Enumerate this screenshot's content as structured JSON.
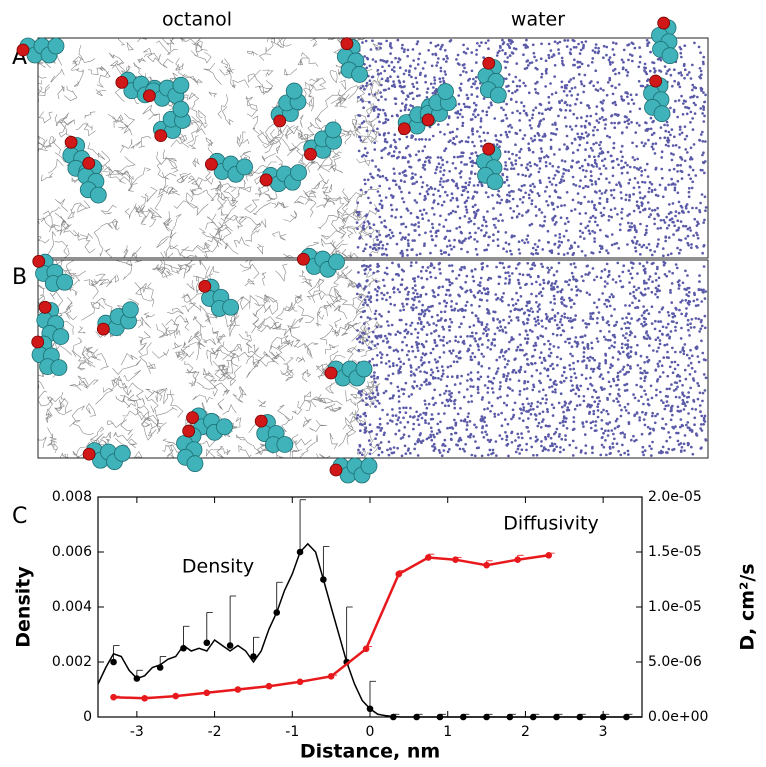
{
  "figure": {
    "panel_labels": [
      "A",
      "B",
      "C"
    ],
    "columns": [
      "octanol",
      "water"
    ]
  },
  "chart_data": {
    "type": "line",
    "x_label": "Distance, nm",
    "y_label": "Density",
    "y2_label": "D, cm²/s",
    "xlim": [
      -3.5,
      3.5
    ],
    "xticks": [
      -3,
      -2,
      -1,
      0,
      1,
      2,
      3
    ],
    "ylim": [
      0,
      0.008
    ],
    "yticks": [
      0,
      0.002,
      0.004,
      0.006,
      0.008
    ],
    "y2lim": [
      0,
      2e-05
    ],
    "y2ticks": [
      {
        "value": 0,
        "label": "0.0e+00"
      },
      {
        "value": 5e-06,
        "label": "5.0e-06"
      },
      {
        "value": 1e-05,
        "label": "1.0e-05"
      },
      {
        "value": 1.5e-05,
        "label": "1.5e-05"
      },
      {
        "value": 2e-05,
        "label": "2.0e-05"
      }
    ],
    "series": [
      {
        "name": "Density",
        "color": "#000000",
        "x": [
          -3.5,
          -3.4,
          -3.3,
          -3.2,
          -3.1,
          -3.0,
          -2.9,
          -2.8,
          -2.7,
          -2.6,
          -2.5,
          -2.4,
          -2.3,
          -2.2,
          -2.1,
          -2.0,
          -1.9,
          -1.8,
          -1.7,
          -1.6,
          -1.5,
          -1.4,
          -1.3,
          -1.2,
          -1.1,
          -1.0,
          -0.9,
          -0.8,
          -0.7,
          -0.6,
          -0.5,
          -0.4,
          -0.3,
          -0.2,
          -0.1,
          0,
          0.1,
          0.2,
          0.3,
          0.4,
          0.5,
          0.6,
          0.7,
          0.8,
          0.9,
          1.0,
          1.1,
          1.2,
          1.3,
          1.4,
          1.5,
          1.6,
          1.7,
          1.8,
          1.9,
          2.0,
          2.1,
          2.2,
          2.3,
          2.4,
          2.5,
          2.6,
          2.7,
          2.8,
          2.9,
          3.0,
          3.1,
          3.2,
          3.3,
          3.4,
          3.5
        ],
        "values": [
          0.0012,
          0.0018,
          0.0023,
          0.0022,
          0.0017,
          0.0014,
          0.0015,
          0.0018,
          0.0019,
          0.0021,
          0.0022,
          0.0026,
          0.0024,
          0.0025,
          0.0024,
          0.0028,
          0.0026,
          0.0024,
          0.0026,
          0.0024,
          0.002,
          0.0024,
          0.0032,
          0.0038,
          0.0046,
          0.0052,
          0.006,
          0.0063,
          0.006,
          0.005,
          0.004,
          0.003,
          0.002,
          0.0012,
          0.0006,
          0.0003,
          0.0001,
          5e-05,
          2e-05,
          0,
          0,
          0,
          0,
          0,
          0,
          0,
          0,
          0,
          0,
          0,
          0,
          0,
          0,
          0,
          0,
          0,
          0,
          0,
          0,
          0,
          0,
          0,
          0,
          0,
          0,
          0,
          0,
          0,
          0,
          0,
          0
        ]
      },
      {
        "color": "#000000",
        "markers": true,
        "x": [
          -3.3,
          -3.0,
          -2.7,
          -2.4,
          -2.1,
          -1.8,
          -1.5,
          -1.2,
          -0.9,
          -0.6,
          -0.3,
          0,
          0.3,
          0.6,
          0.9,
          1.2,
          1.5,
          1.8,
          2.1,
          2.4,
          2.7,
          3.0,
          3.3
        ],
        "values": [
          0.002,
          0.0014,
          0.0018,
          0.0025,
          0.0027,
          0.0026,
          0.0022,
          0.0038,
          0.006,
          0.005,
          0.002,
          0.0003,
          0,
          0,
          0,
          0,
          0,
          0,
          0,
          0,
          0,
          0,
          0
        ],
        "errors": [
          0.0006,
          0.0003,
          0.0004,
          0.0008,
          0.0011,
          0.0018,
          0.0007,
          0.0011,
          0.0019,
          0.0012,
          0.002,
          0.001,
          0.0001,
          0.0001,
          0.0001,
          0.0001,
          0.0001,
          0.0001,
          0.0001,
          0.0001,
          0.0001,
          0.0001,
          0.0001
        ]
      },
      {
        "name": "Diffusivity",
        "color": "#e8191c",
        "axis": "y2",
        "markers": true,
        "x": [
          -3.3,
          -2.9,
          -2.5,
          -2.1,
          -1.7,
          -1.3,
          -0.9,
          -0.5,
          -0.05,
          0.37,
          0.75,
          1.1,
          1.5,
          1.9,
          2.3
        ],
        "values": [
          1.8e-06,
          1.7e-06,
          1.9e-06,
          2.2e-06,
          2.5e-06,
          2.8e-06,
          3.2e-06,
          3.7e-06,
          6.2e-06,
          1.3e-05,
          1.45e-05,
          1.43e-05,
          1.38e-05,
          1.43e-05,
          1.47e-05
        ],
        "errors": [
          1e-07,
          1e-07,
          1e-07,
          1e-07,
          1e-07,
          1e-07,
          1e-07,
          1e-07,
          2e-07,
          3e-07,
          3e-07,
          2e-07,
          4e-07,
          4e-07,
          2e-07
        ]
      }
    ]
  }
}
